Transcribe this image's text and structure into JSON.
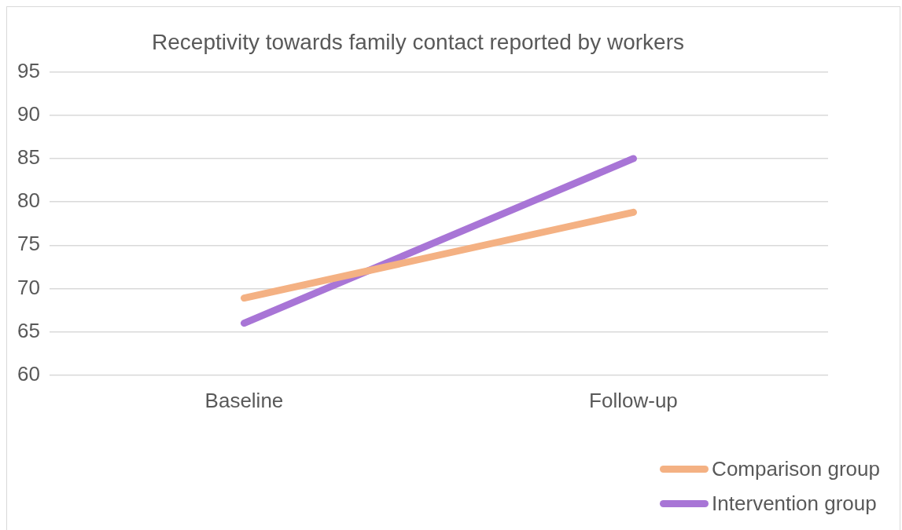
{
  "chart_data": {
    "type": "line",
    "title": "Receptivity towards family contact reported by workers",
    "categories": [
      "Baseline",
      "Follow-up"
    ],
    "series": [
      {
        "name": "Comparison group",
        "color": "#f4b183",
        "values": [
          68.9,
          78.8
        ]
      },
      {
        "name": "Intervention group",
        "color": "#a875d6",
        "values": [
          66.0,
          85.0
        ]
      }
    ],
    "ylim": [
      60,
      95
    ],
    "yticks": [
      60,
      65,
      70,
      75,
      80,
      85,
      90,
      95
    ],
    "grid": "y",
    "legend": "bottom right",
    "marker": "none",
    "line_style": "solid"
  }
}
